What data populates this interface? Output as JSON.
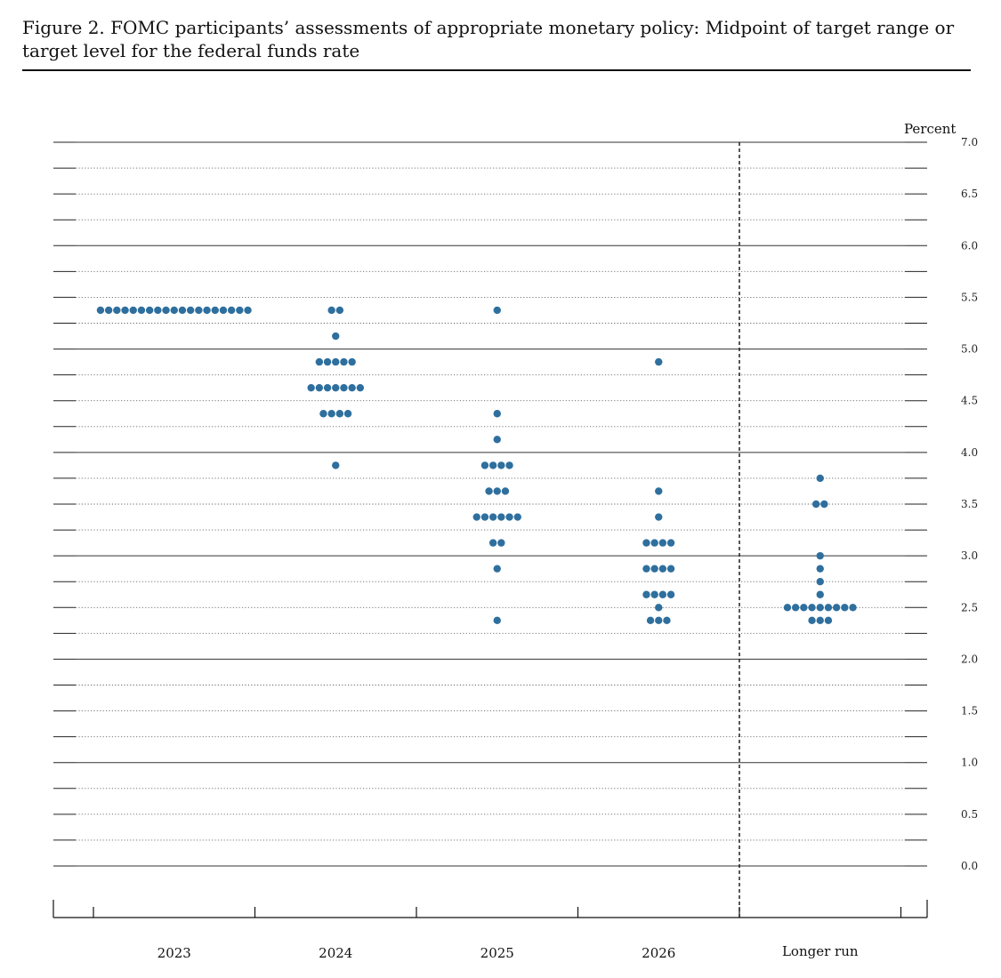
{
  "figure": {
    "title": "Figure 2.  FOMC participants’ assessments of appropriate monetary policy:  Midpoint of target range or target level for the federal funds rate"
  },
  "chart_data": {
    "type": "scatter",
    "title": "Figure 2.  FOMC participants’ assessments of appropriate monetary policy:  Midpoint of target range or target level for the federal funds rate",
    "xlabel": "",
    "ylabel": "Percent",
    "ylim": [
      0,
      7
    ],
    "yticks": [
      {
        "value": 0.0,
        "label": "0.0"
      },
      {
        "value": 0.5,
        "label": "0.5"
      },
      {
        "value": 1.0,
        "label": "1.0"
      },
      {
        "value": 1.5,
        "label": "1.5"
      },
      {
        "value": 2.0,
        "label": "2.0"
      },
      {
        "value": 2.5,
        "label": "2.5"
      },
      {
        "value": 3.0,
        "label": "3.0"
      },
      {
        "value": 3.5,
        "label": "3.5"
      },
      {
        "value": 4.0,
        "label": "4.0"
      },
      {
        "value": 4.5,
        "label": "4.5"
      },
      {
        "value": 5.0,
        "label": "5.0"
      },
      {
        "value": 5.5,
        "label": "5.5"
      },
      {
        "value": 6.0,
        "label": "6.0"
      },
      {
        "value": 6.5,
        "label": "6.5"
      },
      {
        "value": 7.0,
        "label": "7.0"
      }
    ],
    "categories": [
      "2023",
      "2024",
      "2025",
      "2026",
      "Longer run"
    ],
    "dot_color": "#2e6f9e",
    "dots": [
      {
        "category": "2023",
        "values": [
          {
            "rate": 5.375,
            "count": 19
          }
        ]
      },
      {
        "category": "2024",
        "values": [
          {
            "rate": 5.375,
            "count": 2
          },
          {
            "rate": 5.125,
            "count": 1
          },
          {
            "rate": 4.875,
            "count": 5
          },
          {
            "rate": 4.625,
            "count": 7
          },
          {
            "rate": 4.375,
            "count": 4
          },
          {
            "rate": 3.875,
            "count": 1
          }
        ]
      },
      {
        "category": "2025",
        "values": [
          {
            "rate": 5.375,
            "count": 1
          },
          {
            "rate": 4.375,
            "count": 1
          },
          {
            "rate": 4.125,
            "count": 1
          },
          {
            "rate": 3.875,
            "count": 4
          },
          {
            "rate": 3.625,
            "count": 3
          },
          {
            "rate": 3.375,
            "count": 6
          },
          {
            "rate": 3.125,
            "count": 2
          },
          {
            "rate": 2.875,
            "count": 1
          },
          {
            "rate": 2.375,
            "count": 1
          }
        ]
      },
      {
        "category": "2026",
        "values": [
          {
            "rate": 4.875,
            "count": 1
          },
          {
            "rate": 3.625,
            "count": 1
          },
          {
            "rate": 3.375,
            "count": 1
          },
          {
            "rate": 3.125,
            "count": 4
          },
          {
            "rate": 2.875,
            "count": 4
          },
          {
            "rate": 2.625,
            "count": 4
          },
          {
            "rate": 2.5,
            "count": 1
          },
          {
            "rate": 2.375,
            "count": 3
          }
        ]
      },
      {
        "category": "Longer run",
        "values": [
          {
            "rate": 3.75,
            "count": 1
          },
          {
            "rate": 3.5,
            "count": 2
          },
          {
            "rate": 3.0,
            "count": 1
          },
          {
            "rate": 2.875,
            "count": 1
          },
          {
            "rate": 2.75,
            "count": 1
          },
          {
            "rate": 2.625,
            "count": 1
          },
          {
            "rate": 2.5,
            "count": 9
          },
          {
            "rate": 2.375,
            "count": 3
          }
        ]
      }
    ],
    "grid": true,
    "legend": "none"
  }
}
